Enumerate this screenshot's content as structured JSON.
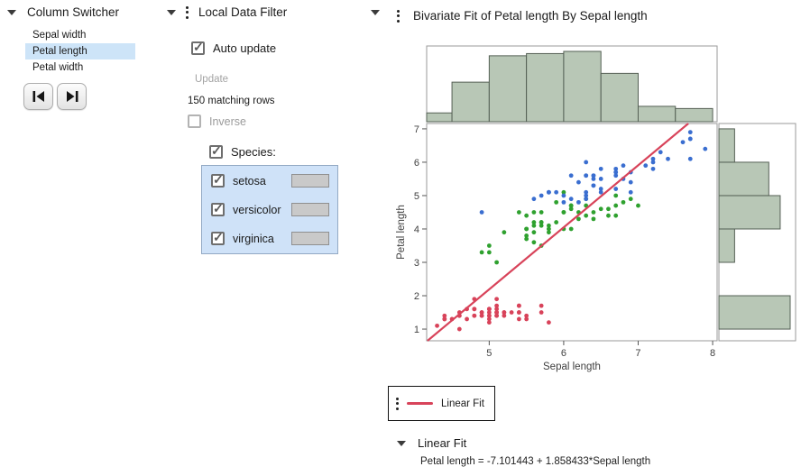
{
  "column_switcher": {
    "title": "Column Switcher",
    "columns": [
      {
        "label": "Sepal width",
        "selected": false
      },
      {
        "label": "Petal length",
        "selected": true
      },
      {
        "label": "Petal width",
        "selected": false
      }
    ]
  },
  "local_data_filter": {
    "title": "Local Data Filter",
    "auto_update_label": "Auto update",
    "auto_update_checked": true,
    "update_label": "Update",
    "matching_rows": "150 matching rows",
    "inverse_label": "Inverse",
    "inverse_checked": false,
    "species_label": "Species:",
    "species_checked": true,
    "species": [
      {
        "label": "setosa",
        "checked": true
      },
      {
        "label": "versicolor",
        "checked": true
      },
      {
        "label": "virginica",
        "checked": true
      }
    ],
    "selection_highlight_color": "#cfe2f8"
  },
  "bivariate": {
    "title": "Bivariate Fit of Petal length By Sepal length",
    "legend_label": "Linear Fit",
    "fit_section_title": "Linear Fit",
    "fit_equation": "Petal length = -7.101443 + 1.858433*Sepal length"
  },
  "chart_data": {
    "type": "scatter",
    "title": "Bivariate Fit of Petal length By Sepal length",
    "xlabel": "Sepal length",
    "ylabel": "Petal length",
    "xlim": [
      4.16,
      8.06
    ],
    "ylim": [
      0.65,
      7.16
    ],
    "x_ticks": [
      5,
      6,
      7,
      8
    ],
    "y_ticks": [
      1,
      2,
      3,
      4,
      5,
      6,
      7
    ],
    "grid": false,
    "frame_color": "#9a9a9a",
    "series": [
      {
        "name": "setosa",
        "color": "#d8435a",
        "points": [
          [
            5.1,
            1.4
          ],
          [
            4.9,
            1.4
          ],
          [
            4.7,
            1.3
          ],
          [
            4.6,
            1.5
          ],
          [
            5.0,
            1.4
          ],
          [
            5.4,
            1.7
          ],
          [
            4.6,
            1.4
          ],
          [
            5.0,
            1.5
          ],
          [
            4.4,
            1.4
          ],
          [
            4.9,
            1.5
          ],
          [
            5.4,
            1.5
          ],
          [
            4.8,
            1.6
          ],
          [
            4.8,
            1.4
          ],
          [
            4.3,
            1.1
          ],
          [
            5.8,
            1.2
          ],
          [
            5.7,
            1.5
          ],
          [
            5.4,
            1.3
          ],
          [
            5.1,
            1.4
          ],
          [
            5.7,
            1.7
          ],
          [
            5.1,
            1.5
          ],
          [
            5.4,
            1.7
          ],
          [
            5.1,
            1.5
          ],
          [
            4.6,
            1.0
          ],
          [
            5.1,
            1.7
          ],
          [
            4.8,
            1.9
          ],
          [
            5.0,
            1.6
          ],
          [
            5.0,
            1.6
          ],
          [
            5.2,
            1.5
          ],
          [
            5.2,
            1.4
          ],
          [
            4.7,
            1.6
          ],
          [
            4.8,
            1.6
          ],
          [
            5.4,
            1.5
          ],
          [
            5.2,
            1.5
          ],
          [
            5.5,
            1.4
          ],
          [
            4.9,
            1.5
          ],
          [
            5.0,
            1.2
          ],
          [
            5.5,
            1.3
          ],
          [
            4.9,
            1.4
          ],
          [
            4.4,
            1.3
          ],
          [
            5.1,
            1.5
          ],
          [
            5.0,
            1.3
          ],
          [
            4.5,
            1.3
          ],
          [
            4.4,
            1.3
          ],
          [
            5.0,
            1.6
          ],
          [
            5.1,
            1.9
          ],
          [
            4.8,
            1.4
          ],
          [
            5.1,
            1.6
          ],
          [
            4.6,
            1.4
          ],
          [
            5.3,
            1.5
          ],
          [
            5.0,
            1.4
          ]
        ]
      },
      {
        "name": "versicolor",
        "color": "#2fa12f",
        "points": [
          [
            7.0,
            4.7
          ],
          [
            6.4,
            4.5
          ],
          [
            6.9,
            4.9
          ],
          [
            5.5,
            4.0
          ],
          [
            6.5,
            4.6
          ],
          [
            5.7,
            4.5
          ],
          [
            6.3,
            4.7
          ],
          [
            4.9,
            3.3
          ],
          [
            6.6,
            4.6
          ],
          [
            5.2,
            3.9
          ],
          [
            5.0,
            3.5
          ],
          [
            5.9,
            4.2
          ],
          [
            6.0,
            4.0
          ],
          [
            6.1,
            4.7
          ],
          [
            5.6,
            3.6
          ],
          [
            6.7,
            4.4
          ],
          [
            5.6,
            4.5
          ],
          [
            5.8,
            4.1
          ],
          [
            6.2,
            4.5
          ],
          [
            5.6,
            3.9
          ],
          [
            5.9,
            4.8
          ],
          [
            6.1,
            4.0
          ],
          [
            6.3,
            4.9
          ],
          [
            6.1,
            4.7
          ],
          [
            6.4,
            4.3
          ],
          [
            6.6,
            4.4
          ],
          [
            6.8,
            4.8
          ],
          [
            6.7,
            5.0
          ],
          [
            6.0,
            4.5
          ],
          [
            5.7,
            3.5
          ],
          [
            5.5,
            3.8
          ],
          [
            5.5,
            3.7
          ],
          [
            5.8,
            3.9
          ],
          [
            6.0,
            5.1
          ],
          [
            5.4,
            4.5
          ],
          [
            6.0,
            4.5
          ],
          [
            6.7,
            4.7
          ],
          [
            6.3,
            4.4
          ],
          [
            5.6,
            4.1
          ],
          [
            5.5,
            4.0
          ],
          [
            5.5,
            4.4
          ],
          [
            6.1,
            4.6
          ],
          [
            5.8,
            4.0
          ],
          [
            5.0,
            3.3
          ],
          [
            5.6,
            4.2
          ],
          [
            5.7,
            4.2
          ],
          [
            5.7,
            4.2
          ],
          [
            6.2,
            4.3
          ],
          [
            5.1,
            3.0
          ],
          [
            5.7,
            4.1
          ]
        ]
      },
      {
        "name": "virginica",
        "color": "#3a6ed0",
        "points": [
          [
            6.3,
            6.0
          ],
          [
            5.8,
            5.1
          ],
          [
            7.1,
            5.9
          ],
          [
            6.3,
            5.6
          ],
          [
            6.5,
            5.8
          ],
          [
            7.6,
            6.6
          ],
          [
            4.9,
            4.5
          ],
          [
            7.3,
            6.3
          ],
          [
            6.7,
            5.8
          ],
          [
            7.2,
            6.1
          ],
          [
            6.5,
            5.1
          ],
          [
            6.4,
            5.3
          ],
          [
            6.8,
            5.5
          ],
          [
            5.7,
            5.0
          ],
          [
            5.8,
            5.1
          ],
          [
            6.4,
            5.3
          ],
          [
            6.5,
            5.5
          ],
          [
            7.7,
            6.7
          ],
          [
            7.7,
            6.9
          ],
          [
            6.0,
            5.0
          ],
          [
            6.9,
            5.7
          ],
          [
            5.6,
            4.9
          ],
          [
            7.7,
            6.7
          ],
          [
            6.3,
            4.9
          ],
          [
            6.7,
            5.7
          ],
          [
            7.2,
            6.0
          ],
          [
            6.2,
            4.8
          ],
          [
            6.1,
            4.9
          ],
          [
            6.4,
            5.6
          ],
          [
            7.2,
            5.8
          ],
          [
            7.4,
            6.1
          ],
          [
            7.9,
            6.4
          ],
          [
            6.4,
            5.6
          ],
          [
            6.3,
            5.1
          ],
          [
            6.1,
            5.6
          ],
          [
            7.7,
            6.1
          ],
          [
            6.3,
            5.6
          ],
          [
            6.4,
            5.5
          ],
          [
            6.0,
            4.8
          ],
          [
            6.9,
            5.4
          ],
          [
            6.7,
            5.6
          ],
          [
            6.9,
            5.1
          ],
          [
            5.8,
            5.1
          ],
          [
            6.8,
            5.9
          ],
          [
            6.7,
            5.7
          ],
          [
            6.7,
            5.2
          ],
          [
            6.3,
            5.0
          ],
          [
            6.5,
            5.2
          ],
          [
            6.2,
            5.4
          ],
          [
            5.9,
            5.1
          ]
        ]
      }
    ],
    "fit_line": {
      "label": "Linear Fit",
      "color": "#d8435a",
      "intercept": -7.101443,
      "slope": 1.858433
    },
    "top_histogram": {
      "variable": "Sepal length",
      "bin_start": 4.0,
      "bin_width": 0.5,
      "counts": [
        4,
        18,
        30,
        31,
        32,
        22,
        7,
        6
      ],
      "fill": "#b8c7b6",
      "stroke": "#556055"
    },
    "right_histogram": {
      "variable": "Petal length",
      "bin_start": 1.0,
      "bin_width": 1.0,
      "counts": [
        50,
        0,
        11,
        43,
        35,
        11
      ],
      "fill": "#b8c7b6",
      "stroke": "#556055"
    }
  }
}
